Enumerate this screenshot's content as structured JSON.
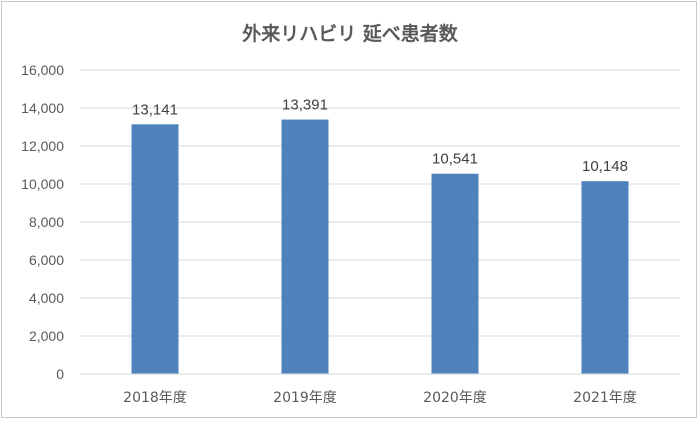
{
  "chart_data": {
    "type": "bar",
    "title": "外来リハビリ 延べ患者数",
    "categories": [
      "2018年度",
      "2019年度",
      "2020年度",
      "2021年度"
    ],
    "values": [
      13141,
      13391,
      10541,
      10148
    ],
    "data_labels": [
      "13,141",
      "13,391",
      "10,541",
      "10,148"
    ],
    "ylim": [
      0,
      16000
    ],
    "yticks": [
      "0",
      "2,000",
      "4,000",
      "6,000",
      "8,000",
      "10,000",
      "12,000",
      "14,000",
      "16,000"
    ],
    "grid": true,
    "legend": "none",
    "bar_color": "#4f81bd",
    "grid_color": "#d9d9d9"
  }
}
